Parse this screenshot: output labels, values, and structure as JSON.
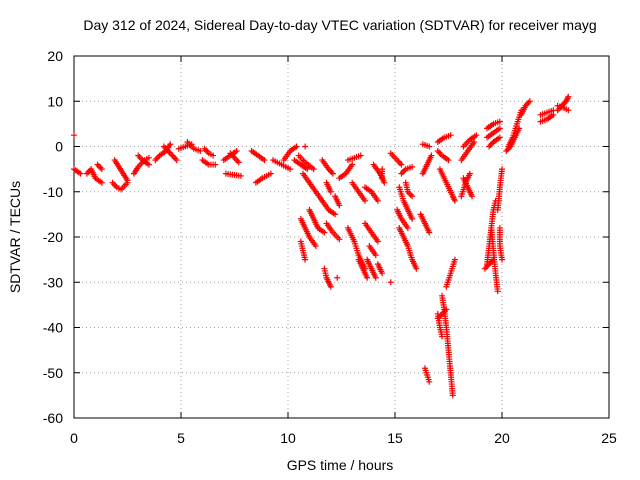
{
  "chart_data": {
    "type": "scatter",
    "title": "Day 312 of 2024, Sidereal Day-to-day VTEC variation (SDTVAR) for receiver mayg",
    "xlabel": "GPS time / hours",
    "ylabel": "SDTVAR / TECUs",
    "xlim": [
      0,
      25
    ],
    "ylim": [
      -60,
      20
    ],
    "xticks": [
      0,
      5,
      10,
      15,
      20,
      25
    ],
    "yticks": [
      -60,
      -50,
      -40,
      -30,
      -20,
      -10,
      0,
      10,
      20
    ],
    "xtick_labels": [
      "0",
      "5",
      "10",
      "15",
      "20",
      "25"
    ],
    "ytick_labels": [
      "-60",
      "-50",
      "-40",
      "-30",
      "-20",
      "-10",
      "0",
      "10",
      "20"
    ],
    "grid": true,
    "marker": "+",
    "color": "#ff0000",
    "series": [
      {
        "name": "SDTVAR",
        "tracks": [
          [
            [
              0.0,
              2.5
            ]
          ],
          [
            [
              0.0,
              -5
            ],
            [
              0.3,
              -6
            ]
          ],
          [
            [
              0.6,
              -6
            ],
            [
              0.8,
              -5
            ],
            [
              1.0,
              -7
            ],
            [
              1.3,
              -8
            ]
          ],
          [
            [
              1.1,
              -4
            ],
            [
              1.3,
              -5
            ]
          ],
          [
            [
              1.8,
              -8
            ],
            [
              2.0,
              -9
            ],
            [
              2.2,
              -9.5
            ],
            [
              2.5,
              -8
            ]
          ],
          [
            [
              1.9,
              -3
            ],
            [
              2.1,
              -4.5
            ],
            [
              2.3,
              -6
            ],
            [
              2.5,
              -7.5
            ]
          ],
          [
            [
              2.8,
              -6
            ],
            [
              3.0,
              -4.5
            ],
            [
              3.3,
              -3
            ],
            [
              3.5,
              -2.5
            ]
          ],
          [
            [
              3.0,
              -2
            ],
            [
              3.2,
              -3
            ],
            [
              3.5,
              -4
            ]
          ],
          [
            [
              3.8,
              -3
            ],
            [
              4.0,
              -2
            ],
            [
              4.3,
              -1
            ],
            [
              4.5,
              0.5
            ]
          ],
          [
            [
              4.2,
              0
            ],
            [
              4.4,
              -1
            ],
            [
              4.6,
              -2
            ],
            [
              4.8,
              -3
            ]
          ],
          [
            [
              4.9,
              -0.5
            ],
            [
              5.2,
              0
            ],
            [
              5.5,
              0.5
            ]
          ],
          [
            [
              5.3,
              1
            ],
            [
              5.6,
              -0.5
            ],
            [
              5.9,
              -1
            ]
          ],
          [
            [
              6.1,
              -0.5
            ],
            [
              6.3,
              -1.5
            ],
            [
              6.5,
              -2
            ]
          ],
          [
            [
              6.0,
              -3
            ],
            [
              6.3,
              -4
            ],
            [
              6.6,
              -4
            ]
          ],
          [
            [
              7.0,
              -3
            ],
            [
              7.3,
              -2
            ],
            [
              7.6,
              -1
            ]
          ],
          [
            [
              7.3,
              -1.5
            ],
            [
              7.5,
              -2.5
            ],
            [
              7.7,
              -3.5
            ]
          ],
          [
            [
              7.1,
              -6
            ],
            [
              7.5,
              -6.3
            ],
            [
              7.8,
              -6.5
            ]
          ],
          [
            [
              8.3,
              -1
            ],
            [
              8.6,
              -2
            ],
            [
              8.9,
              -3
            ]
          ],
          [
            [
              8.5,
              -8
            ],
            [
              8.8,
              -7
            ],
            [
              9.2,
              -6
            ]
          ],
          [
            [
              9.3,
              -3
            ],
            [
              9.7,
              -4
            ],
            [
              10.1,
              -5
            ]
          ],
          [
            [
              9.8,
              -3
            ],
            [
              10.1,
              -1
            ],
            [
              10.4,
              0
            ]
          ],
          [
            [
              10.8,
              0
            ]
          ],
          [
            [
              10.3,
              -3
            ],
            [
              10.6,
              -4
            ],
            [
              10.9,
              -5
            ]
          ],
          [
            [
              10.5,
              -2
            ],
            [
              10.8,
              -3.5
            ],
            [
              11.2,
              -5
            ]
          ],
          [
            [
              10.7,
              -6
            ],
            [
              11.0,
              -8
            ],
            [
              11.3,
              -10
            ],
            [
              11.6,
              -12
            ]
          ],
          [
            [
              11.0,
              -14
            ],
            [
              11.2,
              -16
            ],
            [
              11.4,
              -18
            ],
            [
              11.7,
              -19
            ]
          ],
          [
            [
              10.6,
              -16
            ],
            [
              10.8,
              -18
            ],
            [
              11.0,
              -20
            ],
            [
              11.3,
              -22
            ]
          ],
          [
            [
              10.6,
              -21
            ],
            [
              10.7,
              -23
            ],
            [
              10.8,
              -25
            ]
          ],
          [
            [
              11.6,
              -3
            ],
            [
              11.9,
              -5
            ],
            [
              12.1,
              -6
            ]
          ],
          [
            [
              11.8,
              -8
            ],
            [
              12.0,
              -10
            ]
          ],
          [
            [
              11.6,
              -12
            ],
            [
              11.9,
              -14
            ],
            [
              12.2,
              -15
            ]
          ],
          [
            [
              11.8,
              -17
            ],
            [
              12.1,
              -19
            ],
            [
              12.4,
              -20.5
            ]
          ],
          [
            [
              11.7,
              -27
            ],
            [
              11.8,
              -29
            ],
            [
              12.0,
              -31
            ]
          ],
          [
            [
              12.3,
              -29
            ]
          ],
          [
            [
              12.2,
              -11
            ],
            [
              12.4,
              -13
            ]
          ],
          [
            [
              12.4,
              -7
            ],
            [
              12.7,
              -6
            ],
            [
              13.0,
              -4
            ]
          ],
          [
            [
              12.8,
              -3
            ],
            [
              13.1,
              -2.5
            ],
            [
              13.4,
              -2
            ]
          ],
          [
            [
              13.0,
              -8
            ],
            [
              13.3,
              -10
            ],
            [
              13.6,
              -12
            ]
          ],
          [
            [
              12.8,
              -18
            ],
            [
              13.1,
              -21
            ],
            [
              13.3,
              -24
            ],
            [
              13.6,
              -27
            ]
          ],
          [
            [
              13.3,
              -25
            ],
            [
              13.5,
              -27
            ],
            [
              13.7,
              -29
            ]
          ],
          [
            [
              13.6,
              -17
            ],
            [
              13.9,
              -19
            ],
            [
              14.2,
              -21
            ]
          ],
          [
            [
              13.7,
              -25
            ],
            [
              13.9,
              -27
            ],
            [
              14.1,
              -29
            ]
          ],
          [
            [
              13.8,
              -22
            ],
            [
              14.1,
              -24
            ]
          ],
          [
            [
              14.2,
              -26
            ],
            [
              14.4,
              -28
            ]
          ],
          [
            [
              14.4,
              -5
            ],
            [
              14.4,
              -7
            ]
          ],
          [
            [
              14.8,
              -30
            ]
          ],
          [
            [
              14.0,
              -4
            ],
            [
              14.3,
              -6
            ],
            [
              14.5,
              -8
            ]
          ],
          [
            [
              13.6,
              -9
            ],
            [
              13.9,
              -10
            ],
            [
              14.2,
              -12
            ]
          ],
          [
            [
              14.8,
              -1.5
            ],
            [
              15.1,
              -3
            ],
            [
              15.3,
              -4
            ]
          ],
          [
            [
              15.3,
              -6
            ],
            [
              15.5,
              -5
            ],
            [
              15.8,
              -4.5
            ]
          ],
          [
            [
              15.2,
              -9
            ],
            [
              15.4,
              -12
            ],
            [
              15.6,
              -14
            ],
            [
              15.8,
              -16
            ]
          ],
          [
            [
              15.1,
              -14
            ],
            [
              15.3,
              -16
            ],
            [
              15.6,
              -18
            ]
          ],
          [
            [
              15.2,
              -18
            ],
            [
              15.4,
              -20
            ],
            [
              15.6,
              -22
            ],
            [
              15.8,
              -25
            ],
            [
              16.0,
              -27
            ]
          ],
          [
            [
              15.5,
              -8
            ],
            [
              15.6,
              -10
            ],
            [
              15.8,
              -11
            ]
          ],
          [
            [
              16.3,
              0.5
            ],
            [
              16.6,
              0
            ]
          ],
          [
            [
              16.7,
              -2
            ],
            [
              16.5,
              -4
            ],
            [
              16.3,
              -6
            ]
          ],
          [
            [
              16.2,
              -15
            ],
            [
              16.4,
              -17
            ],
            [
              16.6,
              -19
            ]
          ],
          [
            [
              16.4,
              -49
            ],
            [
              16.6,
              -52
            ]
          ],
          [
            [
              17.1,
              -5
            ],
            [
              17.4,
              -8
            ],
            [
              17.7,
              -11
            ],
            [
              17.8,
              -12
            ]
          ],
          [
            [
              17.0,
              1
            ],
            [
              17.3,
              2
            ],
            [
              17.6,
              2.5
            ]
          ],
          [
            [
              17.0,
              -1
            ],
            [
              17.2,
              -2
            ],
            [
              17.5,
              -3
            ]
          ],
          [
            [
              17.2,
              -33
            ],
            [
              17.3,
              -36
            ],
            [
              17.4,
              -40
            ],
            [
              17.5,
              -45
            ],
            [
              17.6,
              -50
            ],
            [
              17.7,
              -55
            ]
          ],
          [
            [
              17.0,
              -38
            ],
            [
              17.2,
              -37
            ],
            [
              17.4,
              -36
            ]
          ],
          [
            [
              17.4,
              -31
            ],
            [
              17.6,
              -28
            ],
            [
              17.8,
              -25
            ]
          ],
          [
            [
              17.0,
              -37
            ],
            [
              17.1,
              -40
            ],
            [
              17.2,
              -42
            ]
          ],
          [
            [
              18.1,
              -3
            ],
            [
              18.4,
              -1
            ],
            [
              18.7,
              1
            ]
          ],
          [
            [
              18.1,
              -11
            ],
            [
              18.3,
              -8
            ],
            [
              18.5,
              -6
            ]
          ],
          [
            [
              18.2,
              -7
            ],
            [
              18.4,
              -9
            ],
            [
              18.6,
              -11
            ]
          ],
          [
            [
              18.2,
              0
            ],
            [
              18.5,
              1.5
            ],
            [
              18.8,
              2.5
            ]
          ],
          [
            [
              19.3,
              -26
            ],
            [
              19.4,
              -22
            ],
            [
              19.5,
              -18
            ],
            [
              19.6,
              -14
            ],
            [
              19.7,
              -12
            ]
          ],
          [
            [
              19.2,
              -27
            ],
            [
              19.4,
              -26
            ],
            [
              19.6,
              -25
            ]
          ],
          [
            [
              19.5,
              -18
            ],
            [
              19.6,
              -23
            ],
            [
              19.7,
              -28
            ],
            [
              19.8,
              -32
            ]
          ],
          [
            [
              19.8,
              -14
            ],
            [
              19.9,
              -9
            ],
            [
              20.0,
              -5
            ]
          ],
          [
            [
              19.9,
              -18
            ],
            [
              19.9,
              -22
            ],
            [
              20.0,
              -25
            ]
          ],
          [
            [
              19.3,
              2
            ],
            [
              19.6,
              3
            ],
            [
              19.9,
              4
            ]
          ],
          [
            [
              19.3,
              4
            ],
            [
              19.6,
              5
            ],
            [
              19.9,
              5.5
            ]
          ],
          [
            [
              19.4,
              0
            ],
            [
              19.6,
              1
            ],
            [
              19.9,
              2
            ]
          ],
          [
            [
              20.3,
              0
            ],
            [
              20.5,
              2
            ],
            [
              20.7,
              5
            ],
            [
              20.9,
              8
            ]
          ],
          [
            [
              20.2,
              -1
            ],
            [
              20.4,
              0
            ],
            [
              20.6,
              2
            ],
            [
              20.8,
              4
            ]
          ],
          [
            [
              20.9,
              7
            ],
            [
              21.1,
              9
            ],
            [
              21.3,
              10
            ]
          ],
          [
            [
              21.8,
              5.5
            ],
            [
              22.1,
              6
            ],
            [
              22.4,
              7
            ]
          ],
          [
            [
              21.8,
              7
            ],
            [
              22.1,
              7.5
            ],
            [
              22.4,
              8
            ]
          ],
          [
            [
              22.6,
              8
            ],
            [
              22.8,
              9
            ],
            [
              23.0,
              10
            ],
            [
              23.1,
              11
            ]
          ],
          [
            [
              22.6,
              9
            ],
            [
              22.9,
              8.5
            ],
            [
              23.1,
              8
            ]
          ]
        ]
      }
    ]
  }
}
